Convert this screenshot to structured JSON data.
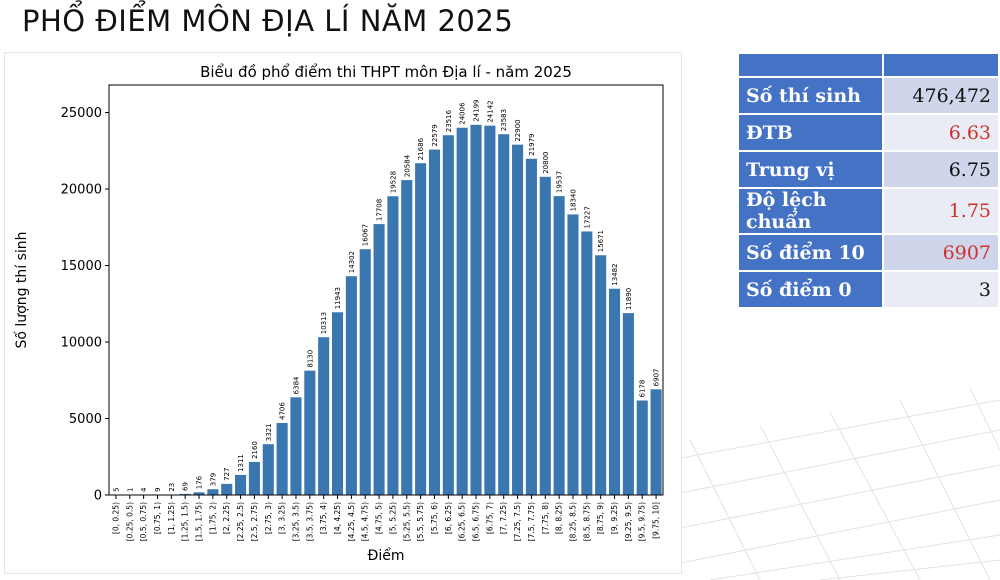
{
  "page_title": "PHỔ ĐIỂM MÔN ĐỊA LÍ NĂM 2025",
  "stats": {
    "rows": [
      {
        "label": "Số thí sinh",
        "value": "476,472",
        "highlight": false
      },
      {
        "label": "ĐTB",
        "value": "6.63",
        "highlight": true
      },
      {
        "label": "Trung vị",
        "value": "6.75",
        "highlight": false
      },
      {
        "label": "Độ lệch chuẩn",
        "value": "1.75",
        "highlight": true
      },
      {
        "label": "Số điểm 10",
        "value": "6907",
        "highlight": true
      },
      {
        "label": "Số điểm 0",
        "value": "3",
        "highlight": false
      }
    ],
    "colors": {
      "header": "#4472c4",
      "highlight_text": "#d0312d"
    }
  },
  "chart_data": {
    "type": "bar",
    "title": "Biểu đồ phổ điểm thi THPT môn Địa lí - năm 2025",
    "xlabel": "Điểm",
    "ylabel": "Số lượng thí sinh",
    "ylim": [
      0,
      26800
    ],
    "yticks": [
      0,
      5000,
      10000,
      15000,
      20000,
      25000
    ],
    "grid": false,
    "bar_color": "#3a76af",
    "categories": [
      "[0, 0.25)",
      "[0.25, 0.5)",
      "[0.5, 0.75)",
      "[0.75, 1)",
      "[1, 1.25)",
      "[1.25, 1.5)",
      "[1.5, 1.75)",
      "[1.75, 2)",
      "[2, 2.25)",
      "[2.25, 2.5)",
      "[2.5, 2.75)",
      "[2.75, 3)",
      "[3, 3.25)",
      "[3.25, 3.5)",
      "[3.5, 3.75)",
      "[3.75, 4)",
      "[4, 4.25)",
      "[4.25, 4.5)",
      "[4.5, 4.75)",
      "[4.75, 5)",
      "[5, 5.25)",
      "[5.25, 5.5)",
      "[5.5, 5.75)",
      "[5.75, 6)",
      "[6, 6.25)",
      "[6.25, 6.5)",
      "[6.5, 6.75)",
      "[6.75, 7)",
      "[7, 7.25)",
      "[7.25, 7.5)",
      "[7.5, 7.75)",
      "[7.75, 8)",
      "[8, 8.25)",
      "[8.25, 8.5)",
      "[8.5, 8.75)",
      "[8.75, 9)",
      "[9, 9.25)",
      "[9.25, 9.5)",
      "[9.5, 9.75)",
      "[9.75, 10]"
    ],
    "values": [
      5,
      1,
      4,
      9,
      23,
      69,
      176,
      379,
      727,
      1311,
      2160,
      3321,
      4706,
      6384,
      8130,
      10313,
      11943,
      14302,
      16067,
      17708,
      19528,
      20584,
      21686,
      22579,
      23516,
      24006,
      24199,
      24142,
      23583,
      22900,
      21979,
      20800,
      19537,
      18340,
      17227,
      15671,
      13482,
      11890,
      6178,
      6907
    ]
  }
}
